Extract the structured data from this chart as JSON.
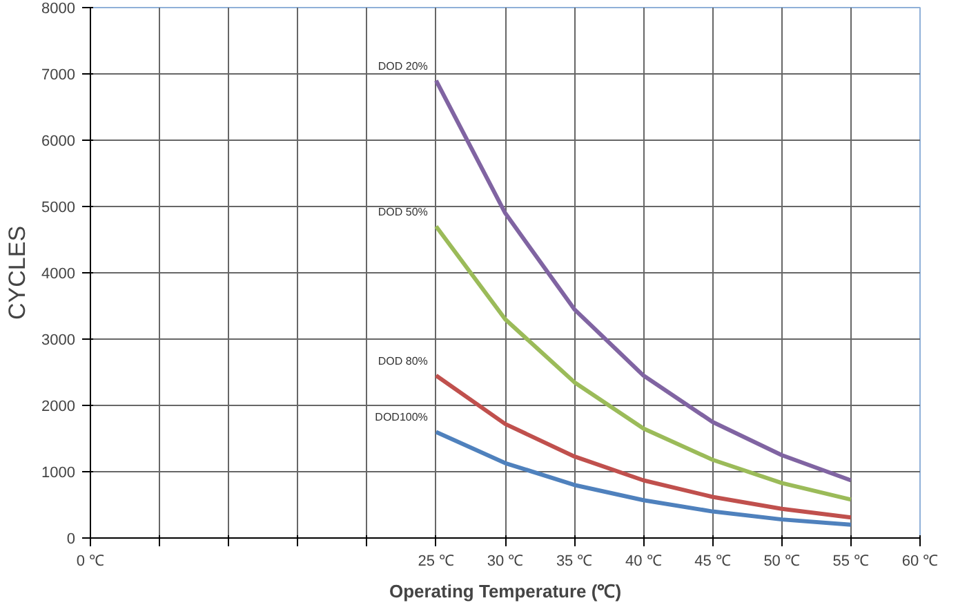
{
  "chart_data": {
    "type": "line",
    "xlabel": "Operating Temperature (℃)",
    "ylabel": "CYCLES",
    "x": [
      25,
      30,
      35,
      40,
      45,
      50,
      55
    ],
    "series": [
      {
        "name": "DOD 20%",
        "color": "#8064a2",
        "values": [
          6900,
          4900,
          3450,
          2450,
          1750,
          1250,
          870
        ]
      },
      {
        "name": "DOD 50%",
        "color": "#9bbb59",
        "values": [
          4700,
          3300,
          2350,
          1650,
          1180,
          830,
          580
        ]
      },
      {
        "name": "DOD 80%",
        "color": "#c0504d",
        "values": [
          2450,
          1720,
          1230,
          870,
          620,
          440,
          310
        ]
      },
      {
        "name": "DOD100%",
        "color": "#4f81bd",
        "values": [
          1600,
          1130,
          800,
          570,
          400,
          280,
          200
        ]
      }
    ],
    "xlim": [
      0,
      60
    ],
    "xticks": [
      {
        "value": 0,
        "label": "0 ℃"
      },
      {
        "value": 5,
        "label": null
      },
      {
        "value": 10,
        "label": null
      },
      {
        "value": 15,
        "label": null
      },
      {
        "value": 20,
        "label": null
      },
      {
        "value": 25,
        "label": "25 ℃"
      },
      {
        "value": 30,
        "label": "30 ℃"
      },
      {
        "value": 35,
        "label": "35 ℃"
      },
      {
        "value": 40,
        "label": "40 ℃"
      },
      {
        "value": 45,
        "label": "45 ℃"
      },
      {
        "value": 50,
        "label": "50 ℃"
      },
      {
        "value": 55,
        "label": "55 ℃"
      },
      {
        "value": 60,
        "label": "60 ℃"
      }
    ],
    "ylim": [
      0,
      8000
    ],
    "yticks": [
      0,
      1000,
      2000,
      3000,
      4000,
      5000,
      6000,
      7000,
      8000
    ],
    "grid": true,
    "marker": "none",
    "line_style": "solid"
  }
}
